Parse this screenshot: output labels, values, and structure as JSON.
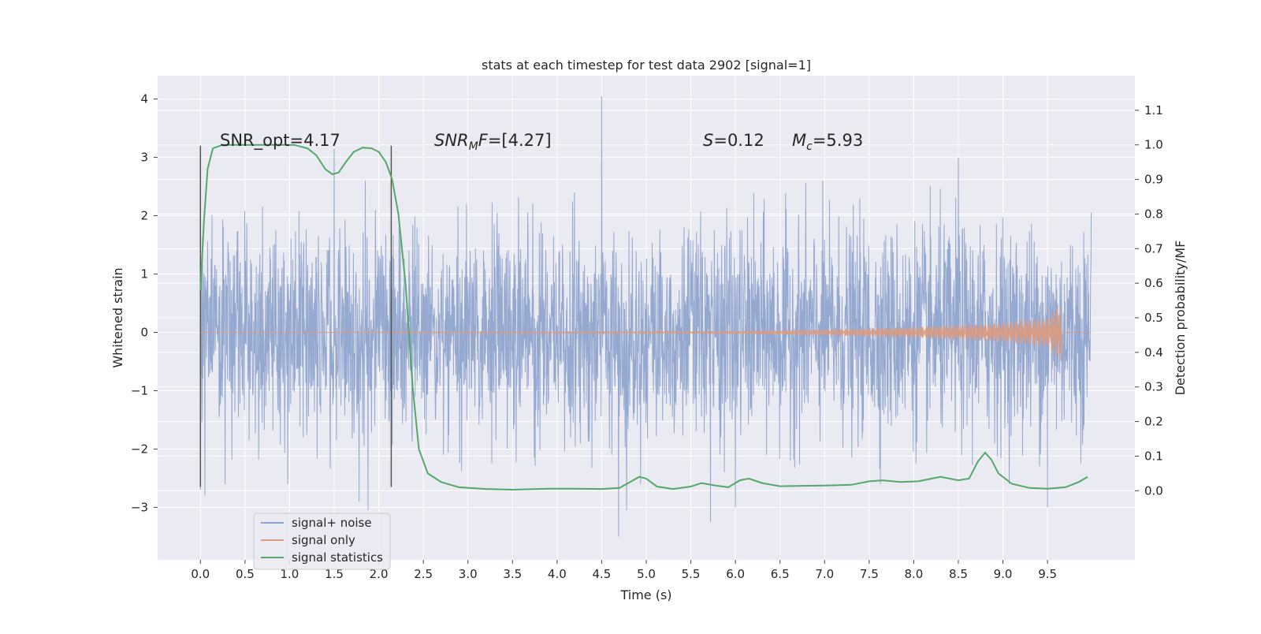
{
  "chart_data": {
    "type": "line",
    "title": "stats at each timestep for test data 2902 [signal=1]",
    "xlabel": "Time (s)",
    "ylabel": "Whitened strain",
    "ylabel_right": "Detection probability/MF",
    "xlim": [
      -0.48,
      10.48
    ],
    "ylim": [
      -3.9,
      4.4
    ],
    "ylim_right": [
      -0.2,
      1.2
    ],
    "x_ticks": [
      0.0,
      0.5,
      1.0,
      1.5,
      2.0,
      2.5,
      3.0,
      3.5,
      4.0,
      4.5,
      5.0,
      5.5,
      6.0,
      6.5,
      7.0,
      7.5,
      8.0,
      8.5,
      9.0,
      9.5
    ],
    "x_tick_labels": [
      "0.0",
      "0.5",
      "1.0",
      "1.5",
      "2.0",
      "2.5",
      "3.0",
      "3.5",
      "4.0",
      "4.5",
      "5.0",
      "5.5",
      "6.0",
      "6.5",
      "7.0",
      "7.5",
      "8.0",
      "8.5",
      "9.0",
      "9.5"
    ],
    "y_ticks": [
      -3,
      -2,
      -1,
      0,
      1,
      2,
      3,
      4
    ],
    "y_tick_labels": [
      "−3",
      "−2",
      "−1",
      "0",
      "1",
      "2",
      "3",
      "4"
    ],
    "y_right_ticks": [
      0.0,
      0.1,
      0.2,
      0.3,
      0.4,
      0.5,
      0.6,
      0.7,
      0.8,
      0.9,
      1.0,
      1.1
    ],
    "y_right_tick_labels": [
      "0.0",
      "0.1",
      "0.2",
      "0.3",
      "0.4",
      "0.5",
      "0.6",
      "0.7",
      "0.8",
      "0.9",
      "1.0",
      "1.1"
    ],
    "grid": true,
    "legend_position": "lower-left",
    "colors": {
      "background": "#eaeaf2",
      "grid": "#ffffff",
      "noise": "#8fa4cd",
      "signal": "#dd9a7c",
      "statistics": "#55a868",
      "vlines": "#555555"
    },
    "series": [
      {
        "name": "signal+ noise",
        "axis": "left",
        "description_values": {
          "x_range": [
            0.0,
            9.99
          ],
          "typical_envelope": [
            -1.6,
            1.6
          ],
          "peak_points": [
            {
              "x": 0.0,
              "y": 1.7
            },
            {
              "x": 0.0,
              "y": -2.7
            },
            {
              "x": 0.05,
              "y": -2.8
            },
            {
              "x": 1.5,
              "y": 3.15
            },
            {
              "x": 1.78,
              "y": -2.9
            },
            {
              "x": 1.88,
              "y": -3.05
            },
            {
              "x": 4.5,
              "y": 4.05
            },
            {
              "x": 4.69,
              "y": -3.5
            },
            {
              "x": 4.78,
              "y": -3.05
            },
            {
              "x": 5.72,
              "y": -3.25
            },
            {
              "x": 6.0,
              "y": -3.0
            },
            {
              "x": 8.5,
              "y": 3.0
            },
            {
              "x": 9.5,
              "y": -3.0
            },
            {
              "x": 9.99,
              "y": 2.05
            }
          ]
        }
      },
      {
        "name": "signal only",
        "axis": "left",
        "chirp": {
          "start_x": 0.0,
          "merger_x": 9.65,
          "end_x": 9.99,
          "amplitude_points": [
            {
              "x": 0.0,
              "y": 0.0
            },
            {
              "x": 5.0,
              "y": 0.01
            },
            {
              "x": 6.0,
              "y": 0.025
            },
            {
              "x": 7.0,
              "y": 0.05
            },
            {
              "x": 8.0,
              "y": 0.09
            },
            {
              "x": 9.0,
              "y": 0.16
            },
            {
              "x": 9.5,
              "y": 0.25
            },
            {
              "x": 9.65,
              "y": 0.5
            }
          ]
        }
      },
      {
        "name": "signal statistics",
        "axis": "right",
        "points": [
          [
            0.0,
            0.58
          ],
          [
            0.04,
            0.78
          ],
          [
            0.08,
            0.93
          ],
          [
            0.14,
            0.99
          ],
          [
            0.25,
            1.0
          ],
          [
            0.5,
            1.0
          ],
          [
            0.8,
            1.0
          ],
          [
            1.05,
            1.0
          ],
          [
            1.2,
            0.99
          ],
          [
            1.3,
            0.97
          ],
          [
            1.4,
            0.93
          ],
          [
            1.48,
            0.915
          ],
          [
            1.55,
            0.92
          ],
          [
            1.63,
            0.95
          ],
          [
            1.72,
            0.98
          ],
          [
            1.82,
            0.992
          ],
          [
            1.92,
            0.99
          ],
          [
            2.0,
            0.98
          ],
          [
            2.08,
            0.95
          ],
          [
            2.15,
            0.9
          ],
          [
            2.22,
            0.8
          ],
          [
            2.3,
            0.6
          ],
          [
            2.38,
            0.3
          ],
          [
            2.45,
            0.12
          ],
          [
            2.55,
            0.05
          ],
          [
            2.7,
            0.025
          ],
          [
            2.9,
            0.01
          ],
          [
            3.2,
            0.005
          ],
          [
            3.5,
            0.003
          ],
          [
            3.9,
            0.006
          ],
          [
            4.2,
            0.006
          ],
          [
            4.5,
            0.005
          ],
          [
            4.7,
            0.008
          ],
          [
            4.82,
            0.025
          ],
          [
            4.92,
            0.04
          ],
          [
            5.0,
            0.035
          ],
          [
            5.12,
            0.012
          ],
          [
            5.3,
            0.005
          ],
          [
            5.5,
            0.012
          ],
          [
            5.62,
            0.022
          ],
          [
            5.78,
            0.015
          ],
          [
            5.92,
            0.01
          ],
          [
            6.05,
            0.03
          ],
          [
            6.15,
            0.035
          ],
          [
            6.3,
            0.022
          ],
          [
            6.5,
            0.013
          ],
          [
            7.0,
            0.015
          ],
          [
            7.3,
            0.017
          ],
          [
            7.5,
            0.027
          ],
          [
            7.65,
            0.03
          ],
          [
            7.85,
            0.025
          ],
          [
            8.05,
            0.027
          ],
          [
            8.3,
            0.04
          ],
          [
            8.5,
            0.03
          ],
          [
            8.62,
            0.035
          ],
          [
            8.72,
            0.085
          ],
          [
            8.8,
            0.11
          ],
          [
            8.87,
            0.09
          ],
          [
            8.95,
            0.05
          ],
          [
            9.1,
            0.02
          ],
          [
            9.3,
            0.008
          ],
          [
            9.5,
            0.006
          ],
          [
            9.7,
            0.01
          ],
          [
            9.85,
            0.025
          ],
          [
            9.95,
            0.04
          ]
        ]
      }
    ],
    "vertical_lines": [
      {
        "x": 0.0,
        "y_range": [
          -2.65,
          3.2
        ]
      },
      {
        "x": 2.14,
        "y_range": [
          -2.65,
          3.2
        ]
      }
    ],
    "annotations": {
      "snr_opt": "SNR_opt=4.17",
      "snr_mf_prefix": "SNR",
      "snr_mf_sub": "M",
      "snr_mf_suffix": "F=[4.27]",
      "s_prefix": "S",
      "s_value": "=0.12",
      "mc_prefix": "M",
      "mc_sub": "c",
      "mc_value": "=5.93"
    }
  }
}
